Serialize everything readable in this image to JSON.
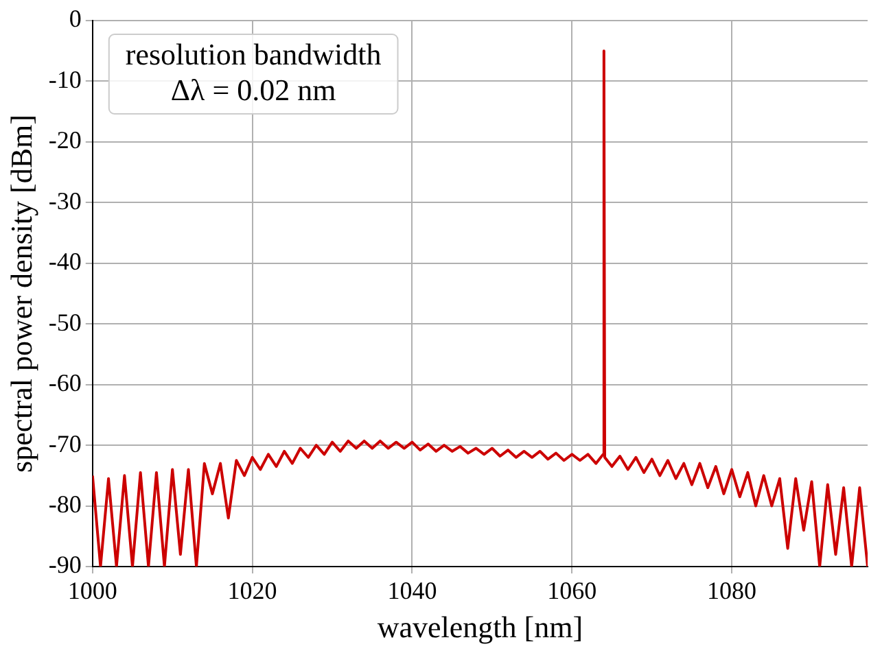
{
  "chart_data": {
    "type": "line",
    "xlabel": "wavelength [nm]",
    "ylabel": "spectral power density [dBm]",
    "annotations": [
      "resolution bandwidth",
      "Δλ = 0.02 nm"
    ],
    "xlim": [
      1000,
      1097
    ],
    "xticks": [
      1000,
      1020,
      1040,
      1060,
      1080
    ],
    "ylim": [
      -90,
      0
    ],
    "yticks": [
      0,
      -10,
      -20,
      -30,
      -40,
      -50,
      -60,
      -70,
      -80,
      -90
    ],
    "grid": true,
    "marker": "none",
    "line_style": "solid",
    "series": [
      {
        "color": "#cc0000",
        "x": [
          1000,
          1001,
          1002,
          1003,
          1004,
          1005,
          1006,
          1007,
          1008,
          1009,
          1010,
          1011,
          1012,
          1013,
          1014,
          1015,
          1016,
          1017,
          1018,
          1019,
          1020,
          1021,
          1022,
          1023,
          1024,
          1025,
          1026,
          1027,
          1028,
          1029,
          1030,
          1031,
          1032,
          1033,
          1034,
          1035,
          1036,
          1037,
          1038,
          1039,
          1040,
          1041,
          1042,
          1043,
          1044,
          1045,
          1046,
          1047,
          1048,
          1049,
          1050,
          1051,
          1052,
          1053,
          1054,
          1055,
          1056,
          1057,
          1058,
          1059,
          1060,
          1061,
          1062,
          1063,
          1063.9,
          1064,
          1064.1,
          1065,
          1066,
          1067,
          1068,
          1069,
          1070,
          1071,
          1072,
          1073,
          1074,
          1075,
          1076,
          1077,
          1078,
          1079,
          1080,
          1081,
          1082,
          1083,
          1084,
          1085,
          1086,
          1087,
          1088,
          1089,
          1090,
          1091,
          1092,
          1093,
          1094,
          1095,
          1096,
          1097
        ],
        "values": [
          -75,
          -90,
          -75.5,
          -90,
          -75,
          -90,
          -74.5,
          -90,
          -74.5,
          -90,
          -74,
          -88,
          -74,
          -90,
          -73,
          -78,
          -73,
          -82,
          -72.5,
          -75,
          -72,
          -74,
          -71.5,
          -73.5,
          -71,
          -73,
          -70.5,
          -72,
          -70,
          -71.5,
          -69.5,
          -71,
          -69.3,
          -70.5,
          -69.3,
          -70.5,
          -69.3,
          -70.5,
          -69.5,
          -70.5,
          -69.5,
          -70.8,
          -69.8,
          -71,
          -70,
          -71,
          -70.2,
          -71.3,
          -70.5,
          -71.5,
          -70.5,
          -71.8,
          -70.8,
          -72,
          -71,
          -72,
          -71,
          -72.3,
          -71.3,
          -72.5,
          -71.5,
          -72.5,
          -71.5,
          -73,
          -71.5,
          -5,
          -72,
          -73.5,
          -71.8,
          -74,
          -72,
          -74.5,
          -72.3,
          -75,
          -72.5,
          -75.5,
          -73,
          -76.5,
          -73,
          -77,
          -73.5,
          -78,
          -74,
          -78.5,
          -74.5,
          -80,
          -75,
          -80,
          -75.5,
          -87,
          -75.5,
          -84,
          -76,
          -90,
          -76.5,
          -88,
          -77,
          -90,
          -77,
          -90
        ]
      }
    ]
  }
}
